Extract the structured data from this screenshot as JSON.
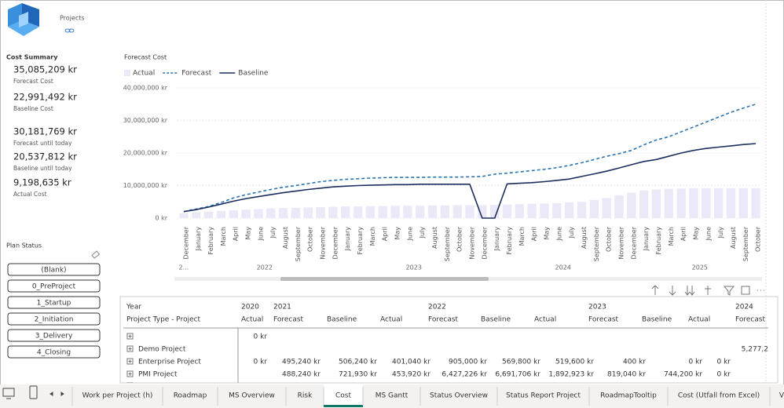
{
  "header": {
    "title": "Projects"
  },
  "cost_summary": {
    "title": "Cost Summary",
    "kpis": [
      {
        "value": "35,085,209 kr",
        "label": "Forecast Cost"
      },
      {
        "value": "22,991,492 kr",
        "label": "Baseline Cost"
      },
      {
        "value": "30,181,769 kr",
        "label": "Forecast until today"
      },
      {
        "value": "20,537,812 kr",
        "label": "Baseline until today"
      },
      {
        "value": "9,198,635 kr",
        "label": "Actual Cost"
      }
    ]
  },
  "plan_status": {
    "title": "Plan Status",
    "options": [
      "(Blank)",
      "0_PreProject",
      "1_Startup",
      "2_Initiation",
      "3_Delivery",
      "4_Closing"
    ]
  },
  "chart_data": {
    "type": "combo",
    "title": "Forecast Cost",
    "categories": [
      "December",
      "January",
      "February",
      "March",
      "April",
      "May",
      "June",
      "July",
      "August",
      "September",
      "October",
      "November",
      "December",
      "January",
      "February",
      "March",
      "April",
      "May",
      "June",
      "July",
      "August",
      "September",
      "October",
      "November",
      "December",
      "January",
      "February",
      "March",
      "April",
      "May",
      "June",
      "July",
      "August",
      "September",
      "October",
      "November",
      "December",
      "January",
      "February",
      "March",
      "April",
      "May",
      "June",
      "July",
      "August",
      "September",
      "October"
    ],
    "year_labels": [
      "2...",
      "2022",
      "2023",
      "2024",
      "2025"
    ],
    "series": [
      {
        "name": "Actual",
        "type": "bar",
        "color": "#ebe9f7",
        "values": [
          1500000,
          1800000,
          2000000,
          2200000,
          2400000,
          2600000,
          2800000,
          3000000,
          3100000,
          3200000,
          3300000,
          3400000,
          3500000,
          3600000,
          3600000,
          3700000,
          3700000,
          3800000,
          3800000,
          3800000,
          3900000,
          3900000,
          4000000,
          4000000,
          4000000,
          4100000,
          4200000,
          4300000,
          4400000,
          4500000,
          4600000,
          4800000,
          5000000,
          5600000,
          6200000,
          7000000,
          7800000,
          8500000,
          8800000,
          9000000,
          9100000,
          9200000,
          9200000,
          9200000,
          9200000,
          9200000,
          9200000
        ]
      },
      {
        "name": "Forecast",
        "type": "line",
        "dash": true,
        "color": "#2b74b0",
        "values": [
          2000000,
          2800000,
          3600000,
          4800000,
          6200000,
          7200000,
          8000000,
          8800000,
          9500000,
          10000000,
          10600000,
          11200000,
          11600000,
          11900000,
          12100000,
          12300000,
          12400000,
          12500000,
          12500000,
          12500000,
          12600000,
          12600000,
          12600000,
          12700000,
          12800000,
          13500000,
          13800000,
          14200000,
          14600000,
          15000000,
          15500000,
          16200000,
          17000000,
          18000000,
          19000000,
          19800000,
          20800000,
          22500000,
          24000000,
          25000000,
          26500000,
          28000000,
          29500000,
          31000000,
          32500000,
          33800000,
          35000000
        ]
      },
      {
        "name": "Baseline",
        "type": "line",
        "dash": false,
        "color": "#1b2e5e",
        "values": [
          2000000,
          2600000,
          3400000,
          4300000,
          5200000,
          6000000,
          6600000,
          7200000,
          7800000,
          8300000,
          8800000,
          9200000,
          9600000,
          9800000,
          10000000,
          10100000,
          10200000,
          10300000,
          10300000,
          10400000,
          10400000,
          10400000,
          10400000,
          10400000,
          0,
          0,
          10500000,
          10700000,
          10900000,
          11200000,
          11600000,
          12000000,
          12800000,
          13600000,
          14400000,
          15400000,
          16400000,
          17400000,
          18000000,
          19000000,
          20000000,
          20800000,
          21400000,
          21800000,
          22200000,
          22600000,
          22900000
        ]
      }
    ],
    "ylim": [
      0,
      40000000
    ],
    "yticks": [
      {
        "value": 0,
        "label": "0 kr"
      },
      {
        "value": 10000000,
        "label": "10,000,000 kr"
      },
      {
        "value": 20000000,
        "label": "20,000,000 kr"
      },
      {
        "value": 30000000,
        "label": "30,000,000 kr"
      },
      {
        "value": 40000000,
        "label": "40,000,000 kr"
      }
    ],
    "grid": true,
    "legend": "top-left"
  },
  "table": {
    "year_header": "Year",
    "row_header": "Project Type - Project",
    "years": [
      "2020",
      "2021",
      null,
      null,
      "2022",
      null,
      null,
      "2023",
      null,
      null,
      "2024"
    ],
    "measures": [
      "Actual",
      "Forecast",
      "Baseline",
      "Actual",
      "Forecast",
      "Baseline",
      "Actual",
      "Forecast",
      "Baseline",
      "Actual",
      "Forecast"
    ],
    "rows": [
      {
        "label": null,
        "cells": [
          "0 kr",
          null,
          null,
          null,
          null,
          null,
          null,
          null,
          null,
          null,
          null
        ]
      },
      {
        "label": "Demo Project",
        "cells": [
          null,
          null,
          null,
          null,
          null,
          null,
          null,
          null,
          null,
          null,
          "5,277,2"
        ]
      },
      {
        "label": "Enterprise Project",
        "cells": [
          "0 kr",
          "495,240 kr",
          "506,240 kr",
          "401,040 kr",
          "905,000 kr",
          "569,800 kr",
          "519,600 kr",
          "400 kr",
          "0 kr",
          "0 kr",
          null
        ]
      },
      {
        "label": "PMI Project",
        "cells": [
          null,
          "488,240 kr",
          "721,930 kr",
          "453,920 kr",
          "6,427,226 kr",
          "6,691,706 kr",
          "1,892,923 kr",
          "819,040 kr",
          "744,200 kr",
          "0 kr",
          null
        ]
      }
    ]
  },
  "tabs": {
    "items": [
      "Work per Project (h)",
      "Roadmap",
      "MS Overview",
      "Risk",
      "Cost",
      "MS Gantt",
      "Status Overview",
      "Status Report Project",
      "RoadmapTooltip",
      "Cost (Utfall from Excel)",
      "V"
    ],
    "active": "Cost"
  }
}
